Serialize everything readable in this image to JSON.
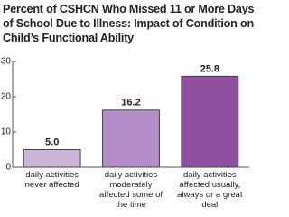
{
  "chart_data": {
    "type": "bar",
    "title": "Percent of CSHCN Who Missed 11 or More Days of School Due to Illness: Impact of Condition on Child’s Functional Ability",
    "categories": [
      "daily activities never affected",
      "daily activities moderately affected some of the time",
      "daily activities affected usually, always or a great deal"
    ],
    "values": [
      5.0,
      16.2,
      25.8
    ],
    "value_labels": [
      "5.0",
      "16.2",
      "25.8"
    ],
    "colors": [
      "#cbb6da",
      "#b48cc6",
      "#8f4f9f"
    ],
    "ylim": [
      0,
      30
    ],
    "yticks": [
      0,
      10,
      20,
      30
    ],
    "grid": false
  }
}
